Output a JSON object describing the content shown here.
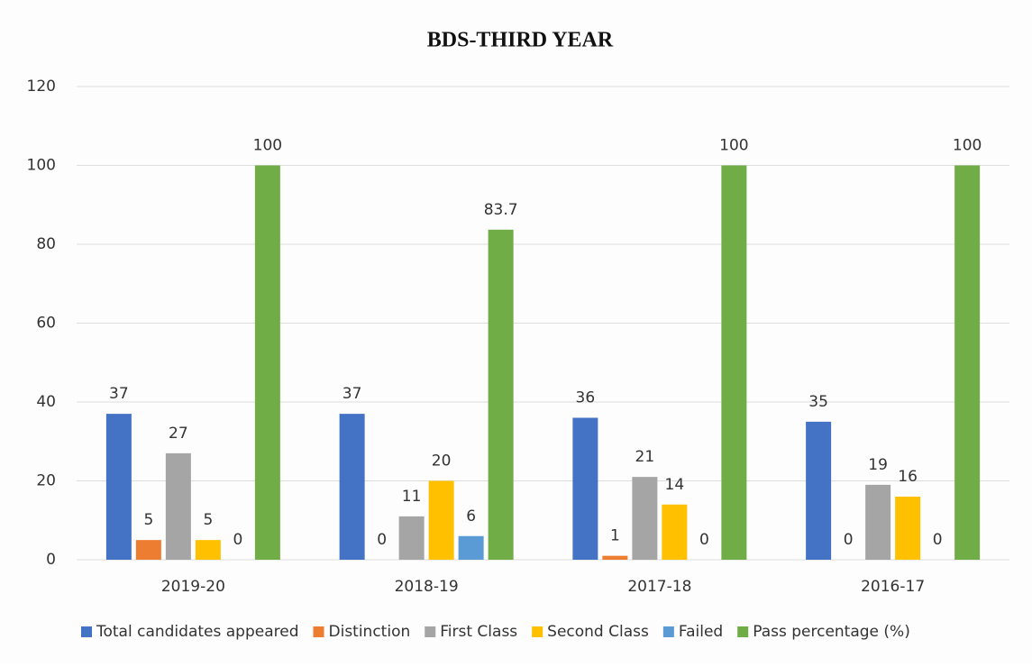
{
  "chart_data": {
    "type": "bar",
    "title": "BDS-THIRD YEAR",
    "categories": [
      "2019-20",
      "2018-19",
      "2017-18",
      "2016-17"
    ],
    "series": [
      {
        "name": "Total candidates appeared",
        "color": "#4472c4",
        "values": [
          37,
          37,
          36,
          35
        ]
      },
      {
        "name": "Distinction",
        "color": "#ed7d31",
        "values": [
          5,
          0,
          1,
          0
        ]
      },
      {
        "name": "First Class",
        "color": "#a5a5a5",
        "values": [
          27,
          11,
          21,
          19
        ]
      },
      {
        "name": "Second Class",
        "color": "#ffc000",
        "values": [
          5,
          20,
          14,
          16
        ]
      },
      {
        "name": "Failed",
        "color": "#5b9bd5",
        "values": [
          0,
          6,
          0,
          0
        ]
      },
      {
        "name": "Pass percentage (%)",
        "color": "#70ad47",
        "values": [
          100,
          83.7,
          100,
          100
        ]
      }
    ],
    "ylim": [
      0,
      120
    ],
    "yticks": [
      0,
      20,
      40,
      60,
      80,
      100,
      120
    ],
    "grid": true,
    "legend": "bottom"
  }
}
